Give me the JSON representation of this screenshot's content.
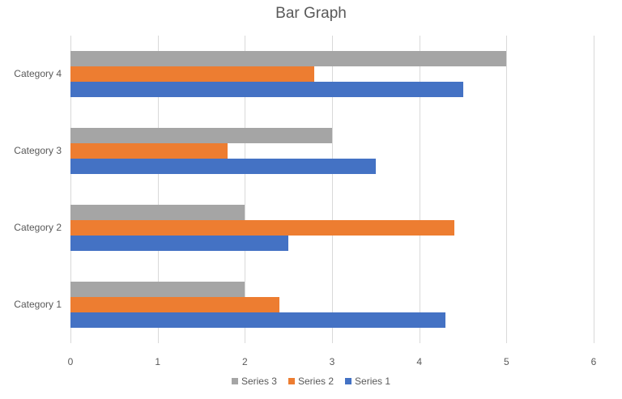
{
  "chart_data": {
    "type": "bar",
    "orientation": "horizontal",
    "title": "Bar Graph",
    "xlabel": "",
    "ylabel": "",
    "categories": [
      "Category 1",
      "Category 2",
      "Category 3",
      "Category 4"
    ],
    "series": [
      {
        "name": "Series 1",
        "color": "#4472C4",
        "values": [
          4.3,
          2.5,
          3.5,
          4.5
        ]
      },
      {
        "name": "Series 2",
        "color": "#ED7D31",
        "values": [
          2.4,
          4.4,
          1.8,
          2.8
        ]
      },
      {
        "name": "Series 3",
        "color": "#A5A5A5",
        "values": [
          2,
          2,
          3,
          5
        ]
      }
    ],
    "xlim": [
      0,
      6
    ],
    "x_ticks": [
      "0",
      "1",
      "2",
      "3",
      "4",
      "5",
      "6"
    ],
    "grid": true,
    "legend_position": "bottom",
    "legend_order": [
      "Series 3",
      "Series 2",
      "Series 1"
    ]
  }
}
